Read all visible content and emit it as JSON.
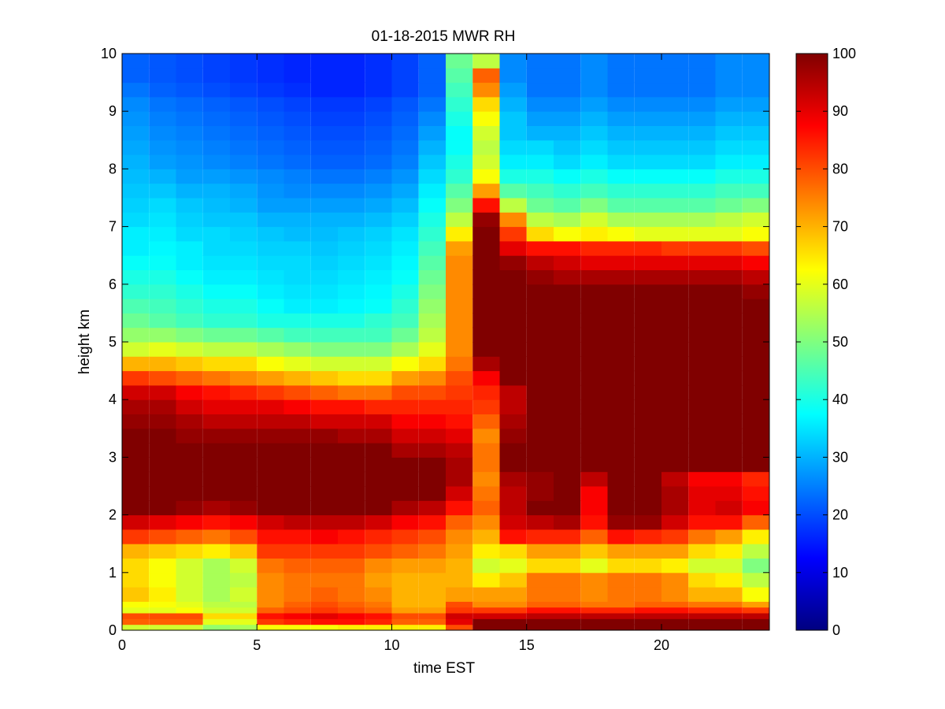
{
  "chart_data": {
    "type": "heatmap",
    "title": "01-18-2015 MWR RH",
    "xlabel": "time EST",
    "ylabel": "height km",
    "xlim": [
      0,
      24
    ],
    "ylim": [
      0,
      10
    ],
    "x_ticks": [
      0,
      5,
      10,
      15,
      20
    ],
    "y_ticks": [
      0,
      1,
      2,
      3,
      4,
      5,
      6,
      7,
      8,
      9,
      10
    ],
    "colorbar": {
      "ticks": [
        0,
        10,
        20,
        30,
        40,
        50,
        60,
        70,
        80,
        90,
        100
      ],
      "range": [
        0,
        100
      ],
      "colormap": "jet"
    },
    "x": [
      0,
      1,
      2,
      3,
      4,
      5,
      6,
      7,
      8,
      9,
      10,
      11,
      12,
      13,
      14,
      15,
      16,
      17,
      18,
      19,
      20,
      21,
      22,
      23
    ],
    "y": [
      0,
      0.1,
      0.2,
      0.3,
      0.4,
      0.5,
      0.75,
      1.0,
      1.25,
      1.5,
      1.75,
      2.0,
      2.25,
      2.5,
      2.75,
      3.0,
      3.25,
      3.5,
      3.75,
      4.0,
      4.25,
      4.5,
      4.75,
      5.0,
      5.25,
      5.5,
      5.75,
      6.0,
      6.25,
      6.5,
      6.75,
      7.0,
      7.25,
      7.5,
      7.75,
      8.0,
      8.25,
      8.5,
      8.75,
      9.0,
      9.25,
      9.5,
      9.75
    ],
    "profiles": [
      {
        "x": 0,
        "values": [
          58,
          78,
          80,
          60,
          62,
          68,
          66,
          66,
          70,
          82,
          92,
          100,
          100,
          100,
          100,
          100,
          100,
          98,
          96,
          92,
          82,
          70,
          58,
          52,
          48,
          45,
          42,
          40,
          38,
          36,
          36,
          34,
          33,
          32,
          31,
          30,
          29,
          28,
          27,
          26,
          24,
          22,
          22
        ]
      },
      {
        "x": 1,
        "values": [
          58,
          78,
          80,
          60,
          62,
          64,
          62,
          62,
          68,
          80,
          90,
          100,
          100,
          100,
          100,
          100,
          100,
          98,
          96,
          92,
          80,
          70,
          60,
          52,
          46,
          44,
          42,
          40,
          38,
          37,
          36,
          35,
          34,
          32,
          30,
          28,
          27,
          26,
          25,
          24,
          22,
          21,
          21
        ]
      },
      {
        "x": 2,
        "values": [
          58,
          78,
          80,
          62,
          60,
          58,
          58,
          58,
          66,
          78,
          88,
          98,
          100,
          100,
          100,
          100,
          98,
          96,
          92,
          88,
          78,
          68,
          58,
          50,
          44,
          42,
          40,
          38,
          36,
          36,
          34,
          33,
          32,
          30,
          28,
          27,
          26,
          25,
          24,
          23,
          21,
          20,
          20
        ]
      },
      {
        "x": 3,
        "values": [
          52,
          60,
          66,
          58,
          56,
          54,
          54,
          54,
          64,
          76,
          86,
          96,
          100,
          100,
          100,
          100,
          98,
          94,
          90,
          86,
          76,
          66,
          56,
          48,
          42,
          40,
          38,
          36,
          35,
          34,
          34,
          32,
          31,
          30,
          28,
          26,
          25,
          24,
          23,
          22,
          20,
          19,
          19
        ]
      },
      {
        "x": 4,
        "values": [
          54,
          60,
          66,
          58,
          56,
          58,
          56,
          58,
          68,
          80,
          88,
          98,
          100,
          100,
          100,
          100,
          98,
          94,
          90,
          84,
          74,
          66,
          56,
          48,
          42,
          40,
          38,
          36,
          35,
          34,
          33,
          32,
          30,
          29,
          27,
          25,
          24,
          23,
          22,
          21,
          19,
          18,
          18
        ]
      },
      {
        "x": 5,
        "values": [
          62,
          82,
          86,
          78,
          74,
          74,
          74,
          76,
          82,
          86,
          92,
          100,
          100,
          100,
          100,
          100,
          98,
          94,
          90,
          82,
          72,
          62,
          54,
          46,
          40,
          38,
          36,
          35,
          34,
          33,
          32,
          30,
          28,
          27,
          26,
          24,
          23,
          22,
          21,
          20,
          18,
          17,
          17
        ]
      },
      {
        "x": 6,
        "values": [
          62,
          84,
          88,
          80,
          78,
          76,
          76,
          78,
          82,
          86,
          94,
          100,
          100,
          100,
          100,
          100,
          98,
          94,
          88,
          80,
          70,
          60,
          52,
          44,
          40,
          36,
          35,
          34,
          34,
          33,
          31,
          30,
          28,
          26,
          25,
          23,
          22,
          21,
          20,
          19,
          17,
          16,
          16
        ]
      },
      {
        "x": 7,
        "values": [
          62,
          86,
          90,
          82,
          80,
          78,
          76,
          78,
          82,
          88,
          94,
          100,
          100,
          100,
          100,
          100,
          98,
          92,
          86,
          78,
          68,
          58,
          50,
          44,
          40,
          36,
          35,
          34,
          33,
          32,
          31,
          30,
          28,
          26,
          24,
          22,
          21,
          20,
          19,
          18,
          16,
          16,
          16
        ]
      },
      {
        "x": 8,
        "values": [
          64,
          86,
          88,
          80,
          78,
          76,
          76,
          78,
          82,
          86,
          94,
          100,
          100,
          100,
          100,
          100,
          96,
          92,
          86,
          76,
          66,
          58,
          50,
          44,
          40,
          37,
          36,
          35,
          34,
          33,
          32,
          30,
          28,
          26,
          24,
          22,
          21,
          20,
          19,
          18,
          16,
          16,
          16
        ]
      },
      {
        "x": 9,
        "values": [
          64,
          84,
          86,
          78,
          76,
          74,
          72,
          74,
          80,
          84,
          92,
          100,
          100,
          100,
          100,
          100,
          96,
          92,
          84,
          76,
          66,
          58,
          50,
          44,
          42,
          38,
          37,
          36,
          35,
          34,
          33,
          31,
          29,
          27,
          25,
          23,
          22,
          21,
          20,
          19,
          17,
          17,
          17
        ]
      },
      {
        "x": 10,
        "values": [
          64,
          78,
          80,
          72,
          70,
          70,
          70,
          72,
          78,
          82,
          88,
          96,
          100,
          100,
          100,
          96,
          92,
          88,
          84,
          80,
          72,
          62,
          54,
          48,
          44,
          42,
          40,
          38,
          37,
          36,
          35,
          33,
          31,
          29,
          27,
          25,
          24,
          23,
          22,
          21,
          19,
          19,
          19
        ]
      },
      {
        "x": 11,
        "values": [
          64,
          78,
          80,
          72,
          70,
          70,
          70,
          72,
          76,
          80,
          86,
          94,
          100,
          100,
          100,
          96,
          92,
          88,
          84,
          80,
          74,
          66,
          60,
          56,
          54,
          52,
          50,
          48,
          46,
          44,
          42,
          40,
          38,
          36,
          34,
          32,
          30,
          28,
          26,
          24,
          22,
          22,
          22
        ]
      },
      {
        "x": 12,
        "values": [
          80,
          90,
          92,
          82,
          80,
          72,
          70,
          70,
          72,
          74,
          78,
          86,
          92,
          96,
          96,
          94,
          90,
          86,
          84,
          82,
          80,
          76,
          74,
          74,
          74,
          74,
          74,
          74,
          74,
          72,
          64,
          56,
          50,
          46,
          42,
          40,
          38,
          38,
          40,
          42,
          44,
          46,
          48
        ]
      },
      {
        "x": 13,
        "values": [
          100,
          100,
          92,
          82,
          74,
          72,
          64,
          58,
          64,
          70,
          74,
          78,
          76,
          74,
          76,
          76,
          74,
          78,
          82,
          84,
          88,
          96,
          100,
          100,
          100,
          100,
          100,
          100,
          100,
          100,
          100,
          98,
          86,
          72,
          62,
          58,
          56,
          58,
          62,
          66,
          74,
          78,
          56
        ]
      },
      {
        "x": 14,
        "values": [
          100,
          100,
          92,
          82,
          74,
          72,
          68,
          60,
          66,
          86,
          92,
          94,
          94,
          96,
          100,
          100,
          98,
          96,
          94,
          94,
          100,
          100,
          100,
          100,
          100,
          100,
          100,
          100,
          98,
          90,
          82,
          74,
          56,
          46,
          40,
          36,
          34,
          32,
          32,
          30,
          28,
          26,
          26
        ]
      },
      {
        "x": 15,
        "values": [
          100,
          100,
          94,
          86,
          78,
          76,
          76,
          66,
          72,
          84,
          94,
          100,
          98,
          98,
          100,
          100,
          100,
          100,
          100,
          100,
          100,
          100,
          100,
          100,
          100,
          100,
          100,
          98,
          94,
          86,
          66,
          56,
          48,
          44,
          40,
          36,
          34,
          30,
          28,
          26,
          24,
          24,
          24
        ]
      },
      {
        "x": 16,
        "values": [
          100,
          100,
          94,
          86,
          78,
          76,
          76,
          66,
          72,
          84,
          96,
          100,
          100,
          100,
          100,
          100,
          100,
          100,
          100,
          100,
          100,
          100,
          100,
          100,
          100,
          100,
          100,
          96,
          92,
          86,
          62,
          54,
          46,
          42,
          38,
          34,
          32,
          30,
          28,
          26,
          24,
          24,
          24
        ]
      },
      {
        "x": 17,
        "values": [
          100,
          100,
          94,
          84,
          76,
          74,
          74,
          60,
          68,
          78,
          86,
          88,
          88,
          94,
          100,
          100,
          100,
          100,
          100,
          100,
          100,
          100,
          100,
          100,
          100,
          100,
          100,
          96,
          90,
          84,
          64,
          58,
          50,
          44,
          40,
          36,
          34,
          32,
          30,
          28,
          26,
          26,
          26
        ]
      },
      {
        "x": 18,
        "values": [
          100,
          100,
          94,
          84,
          76,
          76,
          76,
          66,
          72,
          86,
          98,
          100,
          100,
          100,
          100,
          100,
          100,
          100,
          100,
          100,
          100,
          100,
          100,
          100,
          100,
          100,
          100,
          96,
          90,
          84,
          62,
          54,
          46,
          42,
          38,
          34,
          32,
          30,
          28,
          26,
          24,
          24,
          24
        ]
      },
      {
        "x": 19,
        "values": [
          100,
          100,
          94,
          86,
          78,
          76,
          76,
          66,
          72,
          84,
          98,
          100,
          100,
          100,
          100,
          100,
          100,
          100,
          100,
          100,
          100,
          100,
          100,
          100,
          100,
          100,
          100,
          96,
          90,
          84,
          60,
          54,
          46,
          42,
          38,
          34,
          32,
          30,
          28,
          26,
          24,
          24,
          24
        ]
      },
      {
        "x": 20,
        "values": [
          100,
          100,
          94,
          86,
          78,
          74,
          74,
          64,
          72,
          82,
          92,
          96,
          96,
          94,
          100,
          100,
          100,
          100,
          100,
          100,
          100,
          100,
          100,
          100,
          100,
          100,
          100,
          96,
          90,
          82,
          60,
          54,
          46,
          42,
          38,
          34,
          32,
          30,
          28,
          26,
          24,
          24,
          24
        ]
      },
      {
        "x": 21,
        "values": [
          100,
          100,
          94,
          84,
          76,
          70,
          66,
          58,
          66,
          76,
          86,
          90,
          90,
          88,
          100,
          100,
          100,
          100,
          100,
          100,
          100,
          100,
          100,
          100,
          100,
          100,
          100,
          96,
          90,
          82,
          60,
          54,
          46,
          42,
          38,
          34,
          32,
          30,
          28,
          26,
          24,
          24,
          24
        ]
      },
      {
        "x": 22,
        "values": [
          100,
          100,
          94,
          84,
          76,
          70,
          64,
          58,
          64,
          72,
          86,
          92,
          90,
          88,
          100,
          100,
          100,
          100,
          100,
          100,
          100,
          100,
          100,
          100,
          100,
          100,
          100,
          96,
          90,
          82,
          60,
          56,
          48,
          44,
          40,
          36,
          34,
          32,
          30,
          28,
          26,
          26,
          26
        ]
      },
      {
        "x": 23,
        "values": [
          100,
          100,
          94,
          82,
          72,
          62,
          56,
          50,
          56,
          64,
          78,
          88,
          86,
          84,
          100,
          100,
          100,
          100,
          100,
          100,
          100,
          100,
          100,
          100,
          100,
          100,
          98,
          94,
          88,
          80,
          62,
          58,
          50,
          44,
          40,
          36,
          34,
          32,
          30,
          28,
          26,
          26,
          26
        ]
      }
    ]
  }
}
